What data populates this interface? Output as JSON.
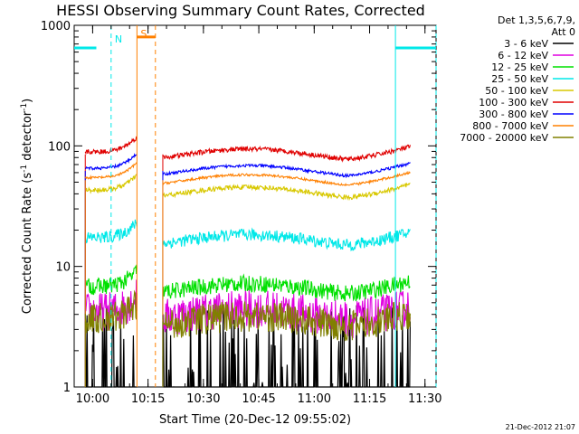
{
  "chart_data": {
    "type": "line",
    "title": "HESSI Observing Summary Count Rates, Corrected",
    "xlabel": "Start Time (20-Dec-12 09:55:02)",
    "ylabel_main": "Corrected Count Rate (s",
    "ylabel_sup1": "-1",
    "ylabel_mid": " detector",
    "ylabel_sup2": "-1",
    "ylabel_end": ")",
    "y_scale": "log",
    "ylim": [
      1,
      1000
    ],
    "xlim": [
      "09:55",
      "11:33"
    ],
    "y_ticks": [
      {
        "value": 1,
        "label": "1"
      },
      {
        "value": 10,
        "label": "10"
      },
      {
        "value": 100,
        "label": "100"
      },
      {
        "value": 1000,
        "label": "1000"
      }
    ],
    "x_ticks": [
      {
        "value": "10:00",
        "label": "10:00"
      },
      {
        "value": "10:15",
        "label": "10:15"
      },
      {
        "value": "10:30",
        "label": "10:30"
      },
      {
        "value": "10:45",
        "label": "10:45"
      },
      {
        "value": "11:00",
        "label": "11:00"
      },
      {
        "value": "11:15",
        "label": "11:15"
      },
      {
        "value": "11:30",
        "label": "11:30"
      }
    ],
    "legend_header": [
      "Det 1,3,5,6,7,9,",
      "Att 0"
    ],
    "legend_position": "right",
    "series": [
      {
        "name": "3 - 6 keV",
        "color": "#000000",
        "level": 1.8,
        "noise": 0.35,
        "sparse": true
      },
      {
        "name": "6 - 12 keV",
        "color": "#e000e0",
        "level": 4.0,
        "noise": 0.16,
        "sparse": false
      },
      {
        "name": "12 - 25 keV",
        "color": "#00e000",
        "level": 6.5,
        "noise": 0.07,
        "sparse": false
      },
      {
        "name": "25 - 50 keV",
        "color": "#00e8e8",
        "level": 16.5,
        "noise": 0.05,
        "sparse": false
      },
      {
        "name": "50 - 100 keV",
        "color": "#d8c800",
        "level": 41,
        "noise": 0.02,
        "sparse": false
      },
      {
        "name": "100 - 300 keV",
        "color": "#e00000",
        "level": 85,
        "noise": 0.02,
        "sparse": false
      },
      {
        "name": "300 - 800 keV",
        "color": "#0000ff",
        "level": 62,
        "noise": 0.012,
        "sparse": false
      },
      {
        "name": "800 - 7000 keV",
        "color": "#ff8000",
        "level": 52,
        "noise": 0.01,
        "sparse": false
      },
      {
        "name": "7000 - 20000 keV",
        "color": "#808000",
        "level": 3.5,
        "noise": 0.13,
        "sparse": false
      }
    ],
    "segments": [
      [
        "09:58",
        "10:12"
      ],
      [
        "10:19",
        "11:26"
      ]
    ],
    "markers": [
      {
        "label": "N",
        "time": "10:05",
        "color": "#00e8e8",
        "style": "dashed"
      },
      {
        "label": "S",
        "time": "10:12",
        "color": "#ff8000",
        "style": "solid"
      },
      {
        "label": "",
        "time": "10:17",
        "color": "#ff8000",
        "style": "dashed"
      },
      {
        "label": "",
        "time": "11:22",
        "color": "#00e8e8",
        "style": "solid"
      },
      {
        "label": "",
        "time": "11:33",
        "color": "#00e8e8",
        "style": "dashed"
      }
    ],
    "night_level": 650,
    "saa_level": 800,
    "footer": "21-Dec-2012 21:07"
  }
}
